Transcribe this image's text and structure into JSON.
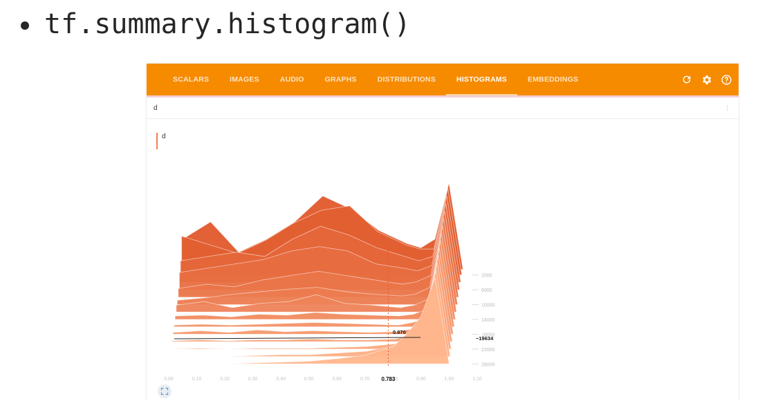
{
  "slide": {
    "title": "tf.summary.histogram()"
  },
  "header": {
    "tabs": [
      {
        "label": "SCALARS"
      },
      {
        "label": "IMAGES"
      },
      {
        "label": "AUDIO"
      },
      {
        "label": "GRAPHS"
      },
      {
        "label": "DISTRIBUTIONS"
      },
      {
        "label": "HISTOGRAMS",
        "active": true
      },
      {
        "label": "EMBEDDINGS"
      }
    ],
    "icons": [
      "refresh-icon",
      "settings-gear-icon",
      "help-icon"
    ],
    "color": "#f68b00"
  },
  "section": {
    "name": "d",
    "more": "⋮"
  },
  "card": {
    "tag": "d"
  },
  "chart_data": {
    "type": "area",
    "mode": "offset",
    "x_ticks": [
      "0.00",
      "0.10",
      "0.20",
      "0.30",
      "0.40",
      "0.50",
      "0.60",
      "0.70",
      "0.80",
      "0.90",
      "1.00",
      "1.10"
    ],
    "y_ticks": [
      "2000",
      "6000",
      "10000",
      "14000",
      "18000",
      "22000",
      "26000"
    ],
    "hover": {
      "x": "0.783",
      "y": "0.870",
      "step": "−19634"
    },
    "xlim": [
      0,
      1.1
    ],
    "step_range": [
      0,
      28000
    ],
    "colors": {
      "old": "#e0582b",
      "new": "#ffb68c"
    },
    "series": [
      {
        "step": 500,
        "x": [
          0.0,
          0.1,
          0.2,
          0.3,
          0.4,
          0.5,
          0.6,
          0.7,
          0.8,
          0.85,
          0.9,
          0.95,
          1.0
        ],
        "y": [
          0.35,
          0.55,
          0.2,
          0.35,
          0.55,
          0.85,
          0.7,
          0.45,
          0.3,
          0.25,
          0.35,
          1.0,
          0.0
        ]
      },
      {
        "step": 2000,
        "x": [
          0.0,
          0.1,
          0.2,
          0.3,
          0.4,
          0.5,
          0.6,
          0.7,
          0.8,
          0.85,
          0.9,
          0.95,
          1.0
        ],
        "y": [
          0.45,
          0.35,
          0.25,
          0.4,
          0.6,
          0.75,
          0.8,
          0.5,
          0.35,
          0.3,
          0.3,
          1.0,
          0.0
        ]
      },
      {
        "step": 4000,
        "x": [
          0.0,
          0.1,
          0.2,
          0.3,
          0.4,
          0.5,
          0.6,
          0.7,
          0.8,
          0.85,
          0.9,
          0.95,
          1.0
        ],
        "y": [
          0.25,
          0.3,
          0.35,
          0.3,
          0.5,
          0.65,
          0.55,
          0.4,
          0.3,
          0.25,
          0.3,
          1.0,
          0.0
        ]
      },
      {
        "step": 6000,
        "x": [
          0.0,
          0.1,
          0.2,
          0.3,
          0.4,
          0.5,
          0.6,
          0.7,
          0.8,
          0.85,
          0.9,
          0.95,
          1.0
        ],
        "y": [
          0.2,
          0.25,
          0.3,
          0.35,
          0.45,
          0.5,
          0.45,
          0.3,
          0.25,
          0.22,
          0.28,
          1.0,
          0.0
        ]
      },
      {
        "step": 8000,
        "x": [
          0.0,
          0.1,
          0.2,
          0.3,
          0.4,
          0.5,
          0.6,
          0.7,
          0.8,
          0.85,
          0.9,
          0.95,
          1.0
        ],
        "y": [
          0.1,
          0.15,
          0.12,
          0.2,
          0.25,
          0.3,
          0.25,
          0.2,
          0.15,
          0.18,
          0.25,
          1.0,
          0.0
        ]
      },
      {
        "step": 10000,
        "x": [
          0.0,
          0.1,
          0.2,
          0.3,
          0.4,
          0.5,
          0.6,
          0.7,
          0.8,
          0.85,
          0.9,
          0.95,
          1.0
        ],
        "y": [
          0.05,
          0.08,
          0.12,
          0.15,
          0.18,
          0.2,
          0.15,
          0.12,
          0.1,
          0.12,
          0.2,
          1.0,
          0.0
        ]
      },
      {
        "step": 12000,
        "x": [
          0.0,
          0.1,
          0.2,
          0.3,
          0.4,
          0.5,
          0.6,
          0.7,
          0.8,
          0.85,
          0.9,
          0.95,
          1.0
        ],
        "y": [
          0.08,
          0.12,
          0.05,
          0.1,
          0.12,
          0.2,
          0.1,
          0.08,
          0.05,
          0.08,
          0.15,
          1.0,
          0.0
        ]
      },
      {
        "step": 14000,
        "x": [
          0.0,
          0.1,
          0.2,
          0.3,
          0.4,
          0.5,
          0.6,
          0.7,
          0.8,
          0.85,
          0.9,
          0.95,
          1.0
        ],
        "y": [
          0.04,
          0.05,
          0.03,
          0.06,
          0.05,
          0.08,
          0.06,
          0.05,
          0.04,
          0.06,
          0.12,
          1.0,
          0.0
        ]
      },
      {
        "step": 16000,
        "x": [
          0.0,
          0.1,
          0.2,
          0.3,
          0.4,
          0.5,
          0.6,
          0.7,
          0.8,
          0.85,
          0.9,
          0.95,
          1.0
        ],
        "y": [
          0.02,
          0.03,
          0.02,
          0.03,
          0.04,
          0.05,
          0.04,
          0.03,
          0.02,
          0.05,
          0.1,
          1.0,
          0.0
        ]
      },
      {
        "step": 18000,
        "x": [
          0.0,
          0.1,
          0.2,
          0.3,
          0.4,
          0.5,
          0.6,
          0.7,
          0.8,
          0.85,
          0.9,
          0.95,
          1.0
        ],
        "y": [
          0.02,
          0.04,
          0.02,
          0.05,
          0.03,
          0.04,
          0.03,
          0.02,
          0.03,
          0.06,
          0.1,
          1.0,
          0.0
        ]
      },
      {
        "step": 20000,
        "x": [
          0.0,
          0.1,
          0.2,
          0.3,
          0.4,
          0.5,
          0.6,
          0.7,
          0.8,
          0.85,
          0.9,
          0.95,
          1.0
        ],
        "y": [
          0.01,
          0.02,
          0.01,
          0.02,
          0.02,
          0.03,
          0.02,
          0.02,
          0.03,
          0.08,
          0.15,
          1.0,
          0.0
        ]
      },
      {
        "step": 22000,
        "x": [
          0.0,
          0.1,
          0.2,
          0.3,
          0.4,
          0.5,
          0.6,
          0.7,
          0.8,
          0.85,
          0.9,
          0.95,
          1.0
        ],
        "y": [
          0.0,
          0.01,
          0.0,
          0.01,
          0.01,
          0.01,
          0.02,
          0.03,
          0.06,
          0.15,
          0.25,
          1.0,
          0.0
        ]
      },
      {
        "step": 24000,
        "x": [
          0.0,
          0.1,
          0.2,
          0.3,
          0.4,
          0.5,
          0.6,
          0.7,
          0.8,
          0.85,
          0.9,
          0.95,
          1.0
        ],
        "y": [
          0.0,
          0.0,
          0.0,
          0.01,
          0.02,
          0.02,
          0.04,
          0.06,
          0.12,
          0.25,
          0.4,
          1.0,
          0.0
        ]
      },
      {
        "step": 26000,
        "x": [
          0.0,
          0.1,
          0.2,
          0.3,
          0.4,
          0.5,
          0.6,
          0.7,
          0.8,
          0.85,
          0.9,
          0.95,
          1.0
        ],
        "y": [
          0.0,
          0.0,
          0.0,
          0.01,
          0.02,
          0.03,
          0.06,
          0.1,
          0.2,
          0.35,
          0.55,
          1.0,
          0.0
        ]
      }
    ]
  }
}
